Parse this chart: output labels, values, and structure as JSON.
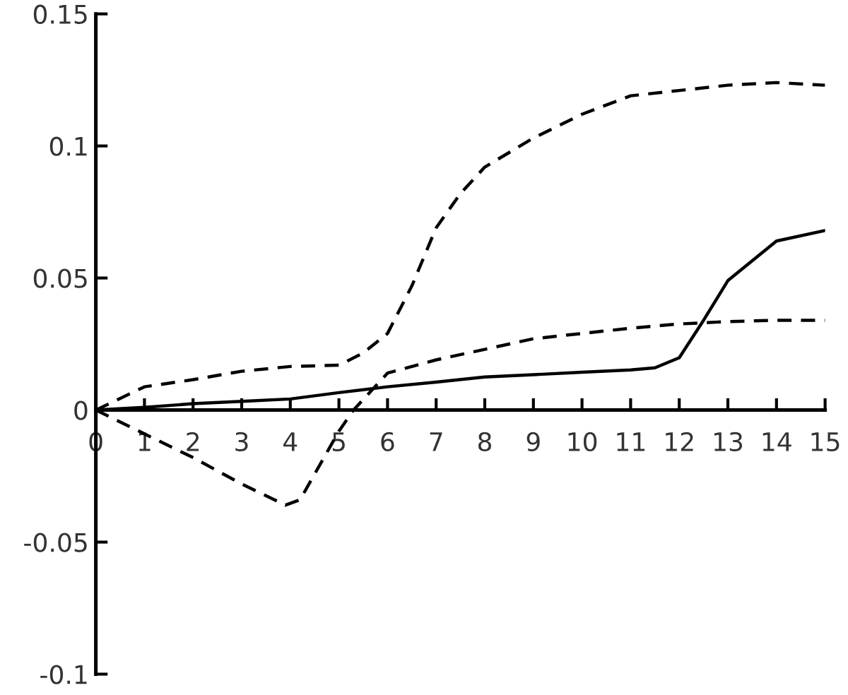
{
  "chart_data": {
    "type": "line",
    "xlim": [
      0,
      15
    ],
    "ylim": [
      -0.1,
      0.15
    ],
    "xticks": [
      0,
      1,
      2,
      3,
      4,
      5,
      6,
      7,
      8,
      9,
      10,
      11,
      12,
      13,
      14,
      15
    ],
    "yticks": [
      -0.1,
      -0.05,
      0,
      0.05,
      0.1,
      0.15
    ],
    "marker": "none",
    "series": [
      {
        "color": "#000000",
        "line_style": "solid",
        "x": [
          0,
          1,
          2,
          3,
          4,
          5,
          6,
          7,
          8,
          9,
          10,
          11,
          11.5,
          12,
          12.5,
          13,
          14,
          15
        ],
        "values": [
          0,
          0.001,
          0.0024,
          0.0033,
          0.0042,
          0.0066,
          0.0088,
          0.0106,
          0.0125,
          0.0134,
          0.0143,
          0.0152,
          0.016,
          0.0198,
          0.034,
          0.049,
          0.064,
          0.068
        ]
      },
      {
        "color": "#000000",
        "line_style": "dashed",
        "x": [
          0,
          1,
          2,
          3,
          4,
          5,
          5.5,
          6,
          6.5,
          7,
          7.5,
          8,
          9,
          10,
          11,
          12,
          13,
          14,
          15
        ],
        "values": [
          0,
          0.0088,
          0.0115,
          0.0147,
          0.0165,
          0.017,
          0.0216,
          0.029,
          0.047,
          0.069,
          0.082,
          0.092,
          0.103,
          0.112,
          0.119,
          0.121,
          0.123,
          0.124,
          0.123
        ]
      },
      {
        "color": "#000000",
        "line_style": "dashed",
        "x": [
          0,
          1,
          2,
          3,
          3.9,
          4.2,
          5,
          5.3,
          6,
          7,
          8,
          9,
          10,
          11,
          12,
          13,
          14,
          15
        ],
        "values": [
          0,
          -0.009,
          -0.018,
          -0.028,
          -0.036,
          -0.034,
          -0.008,
          0,
          0.014,
          0.019,
          0.023,
          0.027,
          0.029,
          0.031,
          0.0326,
          0.0335,
          0.034,
          0.034
        ]
      }
    ]
  }
}
